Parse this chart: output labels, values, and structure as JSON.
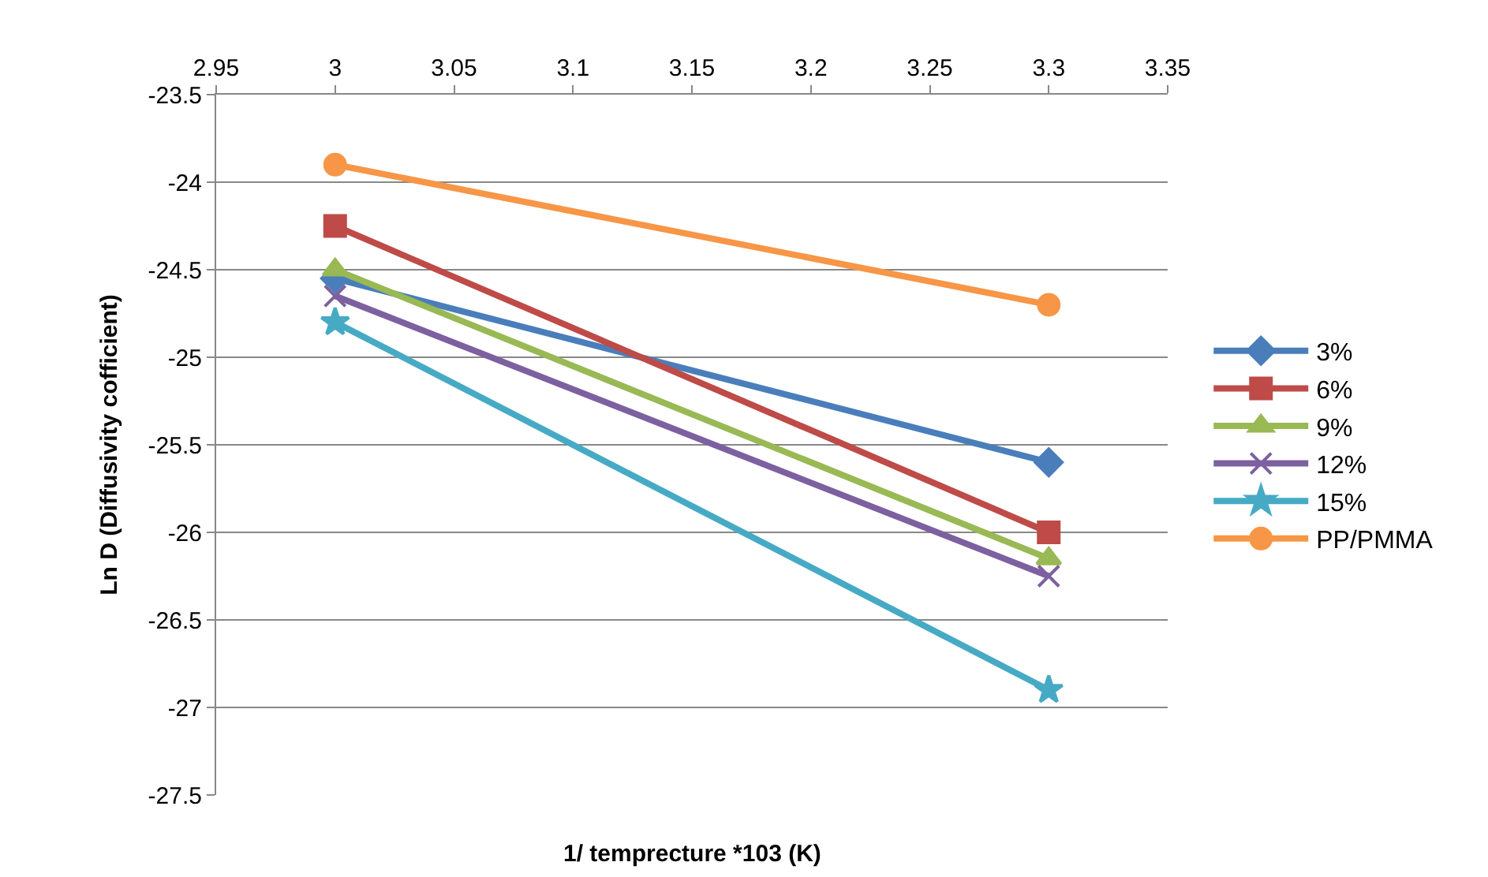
{
  "chart_data": {
    "type": "line",
    "xlabel": "1/ temprecture *103 (K)",
    "ylabel": "Ln D (Diffusivity cofficient)",
    "x": [
      3,
      3.3
    ],
    "xlim": [
      2.95,
      3.35
    ],
    "xticks": [
      2.95,
      3,
      3.05,
      3.1,
      3.15,
      3.2,
      3.25,
      3.3,
      3.35
    ],
    "ylim": [
      -27.5,
      -23.5
    ],
    "yticks": [
      -27.5,
      -27,
      -26.5,
      -26,
      -25.5,
      -25,
      -24.5,
      -24,
      -23.5
    ],
    "grid": "y",
    "legend": "right",
    "series": [
      {
        "name": "3%",
        "color": "#4a7ebb",
        "marker": "diamond",
        "values": [
          -24.55,
          -25.6
        ]
      },
      {
        "name": "6%",
        "color": "#be4b48",
        "marker": "square",
        "values": [
          -24.25,
          -26.0
        ]
      },
      {
        "name": "9%",
        "color": "#98b954",
        "marker": "triangle",
        "values": [
          -24.5,
          -26.15
        ]
      },
      {
        "name": "12%",
        "color": "#7d60a0",
        "marker": "cross",
        "values": [
          -24.65,
          -26.25
        ]
      },
      {
        "name": "15%",
        "color": "#46aac5",
        "marker": "star",
        "values": [
          -24.8,
          -26.9
        ]
      },
      {
        "name": "PP/PMMA",
        "color": "#f79646",
        "marker": "circle",
        "values": [
          -23.9,
          -24.7
        ]
      }
    ]
  }
}
